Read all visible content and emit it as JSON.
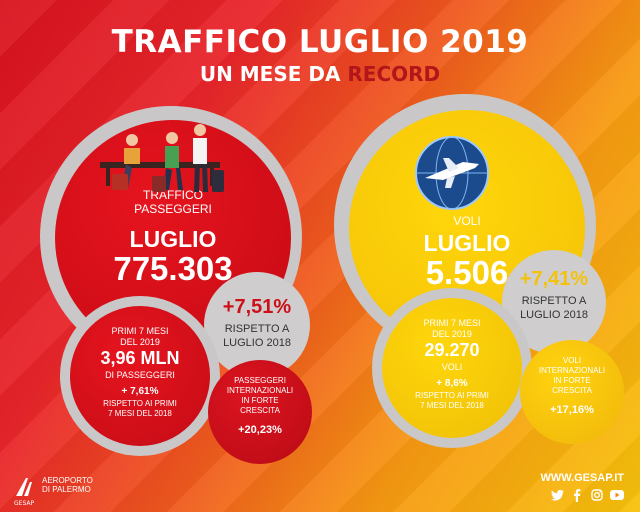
{
  "header": {
    "title": "TRAFFICO LUGLIO 2019",
    "subtitle_prefix": "UN MESE DA ",
    "subtitle_highlight": "RECORD"
  },
  "passengers": {
    "label_line1": "TRAFFICO",
    "label_line2": "PASSEGGERI",
    "month": "LUGLIO",
    "value": "775.303",
    "pct_change": "+7,51%",
    "pct_line1": "RISPETTO A",
    "pct_line2": "LUGLIO 2018",
    "seven_months": {
      "line1": "PRIMI 7 MESI",
      "line2": "DEL 2019",
      "value": "3,96 MLN",
      "line3": "DI PASSEGGERI",
      "pct": "+ 7,61%",
      "line4": "RISPETTO AI PRIMI",
      "line5": "7 MESI DEL 2018"
    },
    "international": {
      "line1": "PASSEGGERI",
      "line2": "INTERNAZIONALI",
      "line3": "IN FORTE",
      "line4": "CRESCITA",
      "pct": "+20,23%"
    }
  },
  "flights": {
    "label": "VOLI",
    "month": "LUGLIO",
    "value": "5.506",
    "pct_change": "+7,41%",
    "pct_line1": "RISPETTO A",
    "pct_line2": "LUGLIO 2018",
    "seven_months": {
      "line1": "PRIMI 7 MESI",
      "line2": "DEL 2019",
      "value": "29.270",
      "line3": "VOLI",
      "pct": "+ 8,6%",
      "line4": "RISPETTO AI PRIMI",
      "line5": "7 MESI DEL 2018"
    },
    "international": {
      "line1": "VOLI",
      "line2": "INTERNAZIONALI",
      "line3": "IN FORTE",
      "line4": "CRESCITA",
      "pct": "+17,16%"
    }
  },
  "footer": {
    "logo_line1": "AEROPORTO",
    "logo_line2": "DI PALERMO",
    "logo_brand": "GESAP",
    "website": "WWW.GESAP.IT",
    "social_icons": [
      "twitter-icon",
      "facebook-icon",
      "instagram-icon",
      "youtube-icon"
    ]
  },
  "colors": {
    "red": "#d0101a",
    "yellow": "#f8cb08",
    "gray": "#c9c7c7",
    "record": "#b2161b"
  }
}
